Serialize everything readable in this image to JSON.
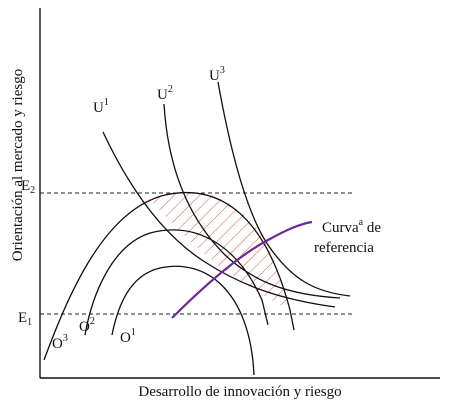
{
  "axes": {
    "x_label": "Desarrollo de innovación y riesgo",
    "y_label": "Orientación al mercado y riesgo"
  },
  "levels": {
    "e2_base": "E",
    "e2_sub": "2",
    "e1_base": "E",
    "e1_sub": "1"
  },
  "indifference_curves": {
    "u1_base": "U",
    "u1_sup": "1",
    "u2_base": "U",
    "u2_sup": "2",
    "u3_base": "U",
    "u3_sup": "3"
  },
  "opportunity_curves": {
    "o1_base": "O",
    "o1_sup": "1",
    "o2_base": "O",
    "o2_sup": "2",
    "o3_base": "O",
    "o3_sup": "3"
  },
  "reference_curve": {
    "label_word": "Curva",
    "label_sup": "a",
    "label_tail": " de",
    "label_line2": "referencia",
    "color": "#6a2a9a"
  },
  "hatch_color": "#d9534f"
}
